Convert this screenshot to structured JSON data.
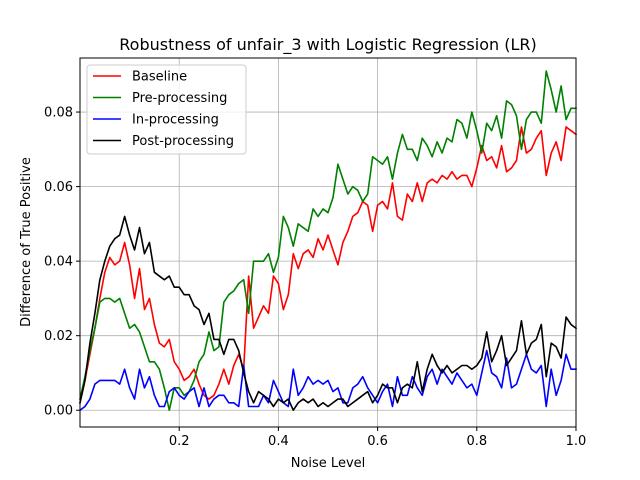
{
  "chart_data": {
    "type": "line",
    "title": "Robustness of unfair_3 with Logistic Regression (LR)",
    "xlabel": "Noise Level",
    "ylabel": "Difference of True Positive",
    "xlim": [
      0.0,
      1.0
    ],
    "ylim": [
      -0.0045,
      0.0945
    ],
    "xticks": [
      0.2,
      0.4,
      0.6,
      0.8,
      1.0
    ],
    "xtick_labels": [
      "0.2",
      "0.4",
      "0.6",
      "0.8",
      "1.0"
    ],
    "yticks": [
      0.0,
      0.02,
      0.04,
      0.06,
      0.08
    ],
    "ytick_labels": [
      "0.00",
      "0.02",
      "0.04",
      "0.06",
      "0.08"
    ],
    "grid": true,
    "legend_position": "top-left",
    "x": [
      0.0,
      0.01,
      0.02,
      0.03,
      0.04,
      0.05,
      0.06,
      0.07,
      0.08,
      0.09,
      0.1,
      0.11,
      0.12,
      0.13,
      0.14,
      0.15,
      0.16,
      0.17,
      0.18,
      0.19,
      0.2,
      0.21,
      0.22,
      0.23,
      0.24,
      0.25,
      0.26,
      0.27,
      0.28,
      0.29,
      0.3,
      0.31,
      0.32,
      0.33,
      0.34,
      0.35,
      0.36,
      0.37,
      0.38,
      0.39,
      0.4,
      0.41,
      0.42,
      0.43,
      0.44,
      0.45,
      0.46,
      0.47,
      0.48,
      0.49,
      0.5,
      0.51,
      0.52,
      0.53,
      0.54,
      0.55,
      0.56,
      0.57,
      0.58,
      0.59,
      0.6,
      0.61,
      0.62,
      0.63,
      0.64,
      0.65,
      0.66,
      0.67,
      0.68,
      0.69,
      0.7,
      0.71,
      0.72,
      0.73,
      0.74,
      0.75,
      0.76,
      0.77,
      0.78,
      0.79,
      0.8,
      0.81,
      0.82,
      0.83,
      0.84,
      0.85,
      0.86,
      0.87,
      0.88,
      0.89,
      0.9,
      0.91,
      0.92,
      0.93,
      0.94,
      0.95,
      0.96,
      0.97,
      0.98,
      0.99,
      1.0
    ],
    "series": [
      {
        "name": "Baseline",
        "color": "#ff0000",
        "values": [
          0.002,
          0.008,
          0.015,
          0.022,
          0.03,
          0.037,
          0.041,
          0.039,
          0.04,
          0.045,
          0.039,
          0.03,
          0.038,
          0.027,
          0.03,
          0.023,
          0.018,
          0.017,
          0.019,
          0.013,
          0.011,
          0.008,
          0.009,
          0.011,
          0.007,
          0.004,
          0.003,
          0.004,
          0.007,
          0.011,
          0.007,
          0.012,
          0.015,
          0.011,
          0.036,
          0.022,
          0.025,
          0.028,
          0.026,
          0.036,
          0.034,
          0.027,
          0.031,
          0.042,
          0.038,
          0.042,
          0.043,
          0.041,
          0.046,
          0.043,
          0.047,
          0.043,
          0.039,
          0.045,
          0.048,
          0.052,
          0.053,
          0.056,
          0.055,
          0.048,
          0.055,
          0.056,
          0.054,
          0.061,
          0.052,
          0.051,
          0.058,
          0.056,
          0.061,
          0.056,
          0.061,
          0.062,
          0.061,
          0.063,
          0.062,
          0.064,
          0.062,
          0.063,
          0.063,
          0.06,
          0.065,
          0.071,
          0.067,
          0.068,
          0.065,
          0.071,
          0.064,
          0.065,
          0.067,
          0.076,
          0.069,
          0.07,
          0.073,
          0.075,
          0.063,
          0.069,
          0.072,
          0.067,
          0.076,
          0.075,
          0.074
        ]
      },
      {
        "name": "Pre-processing",
        "color": "#008000",
        "values": [
          0.003,
          0.009,
          0.016,
          0.022,
          0.029,
          0.03,
          0.03,
          0.029,
          0.03,
          0.026,
          0.022,
          0.023,
          0.021,
          0.017,
          0.013,
          0.013,
          0.011,
          0.006,
          0.0,
          0.006,
          0.006,
          0.004,
          0.005,
          0.008,
          0.013,
          0.015,
          0.021,
          0.016,
          0.017,
          0.029,
          0.031,
          0.032,
          0.034,
          0.035,
          0.026,
          0.04,
          0.04,
          0.04,
          0.042,
          0.037,
          0.041,
          0.052,
          0.049,
          0.044,
          0.05,
          0.049,
          0.048,
          0.054,
          0.052,
          0.054,
          0.053,
          0.057,
          0.066,
          0.062,
          0.058,
          0.06,
          0.059,
          0.056,
          0.058,
          0.068,
          0.067,
          0.066,
          0.068,
          0.062,
          0.069,
          0.074,
          0.07,
          0.07,
          0.067,
          0.073,
          0.071,
          0.068,
          0.072,
          0.069,
          0.073,
          0.072,
          0.078,
          0.077,
          0.073,
          0.08,
          0.075,
          0.069,
          0.077,
          0.075,
          0.079,
          0.073,
          0.083,
          0.082,
          0.079,
          0.07,
          0.078,
          0.08,
          0.08,
          0.077,
          0.091,
          0.086,
          0.08,
          0.087,
          0.078,
          0.081,
          0.081
        ]
      },
      {
        "name": "In-processing",
        "color": "#0000ff",
        "values": [
          0.0,
          0.001,
          0.003,
          0.007,
          0.008,
          0.008,
          0.008,
          0.008,
          0.007,
          0.011,
          0.006,
          0.003,
          0.011,
          0.006,
          0.009,
          0.004,
          0.001,
          0.001,
          0.005,
          0.006,
          0.004,
          0.003,
          0.005,
          0.006,
          0.001,
          0.006,
          0.001,
          0.003,
          0.004,
          0.004,
          0.002,
          0.002,
          0.001,
          0.012,
          0.001,
          0.001,
          0.001,
          0.004,
          0.002,
          0.008,
          0.005,
          0.002,
          0.001,
          0.011,
          0.004,
          0.006,
          0.009,
          0.007,
          0.008,
          0.007,
          0.008,
          0.005,
          0.006,
          0.002,
          0.002,
          0.006,
          0.007,
          0.009,
          0.006,
          0.004,
          0.002,
          0.005,
          0.007,
          0.001,
          0.009,
          0.004,
          0.004,
          0.009,
          0.006,
          0.004,
          0.009,
          0.011,
          0.007,
          0.011,
          0.009,
          0.007,
          0.01,
          0.008,
          0.006,
          0.007,
          0.004,
          0.01,
          0.016,
          0.01,
          0.009,
          0.006,
          0.014,
          0.006,
          0.007,
          0.011,
          0.015,
          0.011,
          0.01,
          0.012,
          0.001,
          0.011,
          0.004,
          0.008,
          0.015,
          0.011,
          0.011
        ]
      },
      {
        "name": "Post-processing",
        "color": "#000000",
        "values": [
          0.002,
          0.008,
          0.018,
          0.026,
          0.035,
          0.04,
          0.044,
          0.046,
          0.047,
          0.052,
          0.047,
          0.043,
          0.049,
          0.042,
          0.045,
          0.037,
          0.036,
          0.035,
          0.036,
          0.033,
          0.033,
          0.031,
          0.031,
          0.028,
          0.027,
          0.023,
          0.026,
          0.019,
          0.019,
          0.015,
          0.019,
          0.019,
          0.016,
          0.01,
          0.005,
          0.002,
          0.005,
          0.004,
          0.003,
          0.001,
          0.003,
          0.002,
          0.003,
          0.0,
          0.002,
          0.003,
          0.002,
          0.003,
          0.001,
          0.002,
          0.001,
          0.002,
          0.003,
          0.003,
          0.001,
          0.002,
          0.003,
          0.004,
          0.005,
          0.002,
          0.004,
          0.007,
          0.006,
          0.006,
          0.002,
          0.006,
          0.007,
          0.006,
          0.013,
          0.005,
          0.011,
          0.015,
          0.012,
          0.01,
          0.012,
          0.01,
          0.011,
          0.012,
          0.012,
          0.011,
          0.012,
          0.014,
          0.021,
          0.013,
          0.016,
          0.02,
          0.012,
          0.014,
          0.016,
          0.024,
          0.015,
          0.018,
          0.019,
          0.023,
          0.009,
          0.018,
          0.017,
          0.014,
          0.025,
          0.023,
          0.022
        ]
      }
    ]
  }
}
